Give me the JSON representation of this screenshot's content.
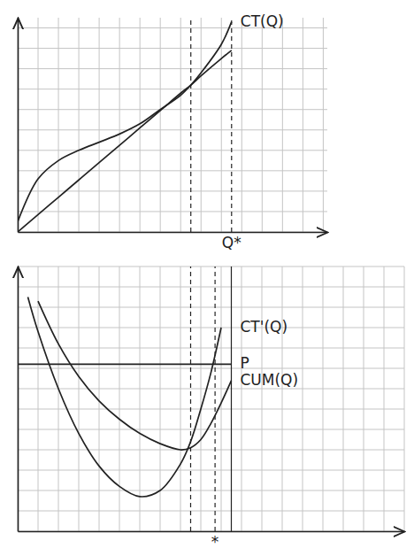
{
  "chart_data": [
    {
      "type": "line",
      "x": [
        0,
        1,
        2,
        3,
        4,
        5,
        6,
        7,
        8,
        8.5,
        9,
        10,
        10.5
      ],
      "series": [
        {
          "name": "CT(Q)",
          "color": "#222222",
          "values": [
            0.5,
            2.6,
            3.5,
            4.0,
            4.4,
            4.8,
            5.3,
            6.0,
            6.7,
            7.2,
            7.8,
            9.2,
            10.3
          ]
        },
        {
          "color": "#222222",
          "values": [
            0,
            0.85,
            1.7,
            2.55,
            3.4,
            4.25,
            5.1,
            5.95,
            6.8,
            7.2,
            7.65,
            8.5,
            8.9
          ]
        }
      ],
      "xlim": [
        0,
        15.2
      ],
      "ylim": [
        0,
        10.5
      ],
      "xticks": [
        0,
        1,
        2,
        3,
        4,
        5,
        6,
        7,
        8,
        9,
        10,
        11,
        12,
        13,
        14,
        15
      ],
      "yticks": [
        0,
        1,
        2,
        3,
        4,
        5,
        6,
        7,
        8,
        9,
        10
      ],
      "grid": true,
      "tick_labels": false,
      "reference_lines": [
        {
          "x": 8.5,
          "line_style": "dashed"
        },
        {
          "x": 10.5,
          "line_style": "dashed"
        }
      ],
      "annotations": [
        {
          "text": "Q*",
          "x": 10.5
        }
      ]
    },
    {
      "type": "line",
      "x": [
        0,
        0.5,
        1,
        2,
        3,
        4,
        5,
        6,
        7,
        8,
        8.5,
        9,
        9.5,
        10,
        10.5
      ],
      "series": [
        {
          "name": "CT'(Q)",
          "color": "#222222",
          "values": [
            null,
            11.5,
            9.8,
            7.0,
            4.8,
            3.2,
            2.2,
            1.7,
            2.0,
            3.3,
            4.4,
            6.0,
            7.8,
            10.0,
            null
          ]
        },
        {
          "name": "P",
          "color": "#222222",
          "values": [
            8.2,
            8.2,
            8.2,
            8.2,
            8.2,
            8.2,
            8.2,
            8.2,
            8.2,
            8.2,
            8.2,
            8.2,
            8.2,
            8.2,
            8.2
          ]
        },
        {
          "name": "CUM(Q)",
          "color": "#222222",
          "values": [
            null,
            null,
            11.3,
            9.2,
            7.6,
            6.4,
            5.5,
            4.8,
            4.3,
            4.0,
            4.1,
            4.5,
            5.3,
            6.3,
            7.4
          ]
        }
      ],
      "xlim": [
        0,
        19
      ],
      "ylim": [
        0,
        13
      ],
      "xticks": [
        0,
        1,
        2,
        3,
        4,
        5,
        6,
        7,
        8,
        9,
        10,
        11,
        12,
        13,
        14,
        15,
        16,
        17,
        18,
        19
      ],
      "yticks": [
        0,
        1,
        2,
        3,
        4,
        5,
        6,
        7,
        8,
        9,
        10,
        11,
        12,
        13
      ],
      "grid": true,
      "tick_labels": false,
      "reference_lines": [
        {
          "x": 8.5,
          "line_style": "dashed"
        },
        {
          "x": 9.7,
          "line_style": "dashed"
        },
        {
          "x": 10.5,
          "line_style": "solid"
        }
      ],
      "annotations": [
        {
          "text": "*",
          "x": 9.7
        }
      ]
    }
  ]
}
